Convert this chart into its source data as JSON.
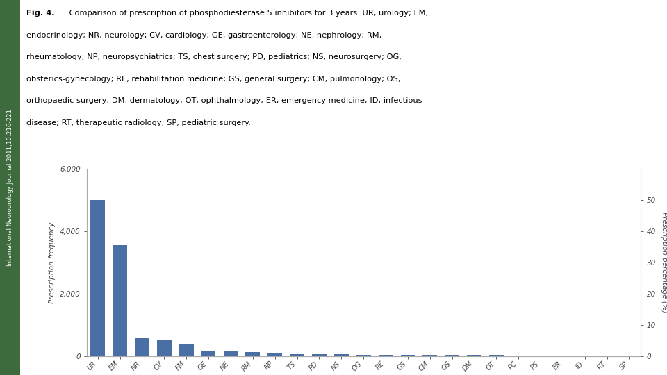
{
  "categories": [
    "UR",
    "EM",
    "NR",
    "CV",
    "FM",
    "GE",
    "NE",
    "RM",
    "NP",
    "TS",
    "PD",
    "NS",
    "OG",
    "RE",
    "GS",
    "CM",
    "OS",
    "DM",
    "OT",
    "PC",
    "PS",
    "ER",
    "ID",
    "RT",
    "SP"
  ],
  "values": [
    5000,
    3550,
    580,
    520,
    380,
    160,
    145,
    125,
    85,
    68,
    62,
    58,
    52,
    48,
    45,
    43,
    40,
    38,
    34,
    32,
    28,
    22,
    18,
    14,
    8
  ],
  "bar_color": "#4a6fa5",
  "ylabel_left": "Prescription frequency",
  "ylabel_right": "Prescription percentage (%)",
  "ylim_left": [
    0,
    6000
  ],
  "ylim_right": [
    0,
    60
  ],
  "yticks_left": [
    0,
    2000,
    4000,
    6000
  ],
  "yticks_right": [
    0,
    10,
    20,
    30,
    40,
    50
  ],
  "background_color": "#ffffff",
  "sidebar_color": "#3d6b3d",
  "sidebar_text": "International Neurourology Journal 2011;15:216-221",
  "caption_lines": [
    [
      "Fig. 4.",
      " Comparison of prescription of phosphodiesterase 5 inhibitors for 3 years. UR, urology; EM,"
    ],
    [
      "",
      "endocrinology; NR, neurology; CV, cardiology; GE, gastroenterology; NE, nephrology; RM,"
    ],
    [
      "",
      "rheumatology; NP, neuropsychiatrics; TS, chest surgery; PD, pediatrics; NS, neurosurgery; OG,"
    ],
    [
      "",
      "obsterics-gynecology; RE, rehabilitation medicine; GS, general surgery; CM, pulmonology; OS,"
    ],
    [
      "",
      "orthopaedic surgery; DM, dermatology; OT, ophthalmology; ER, emergency medicine; ID, infectious"
    ],
    [
      "",
      "disease; RT, therapeutic radiology; SP, pediatric surgery."
    ]
  ]
}
